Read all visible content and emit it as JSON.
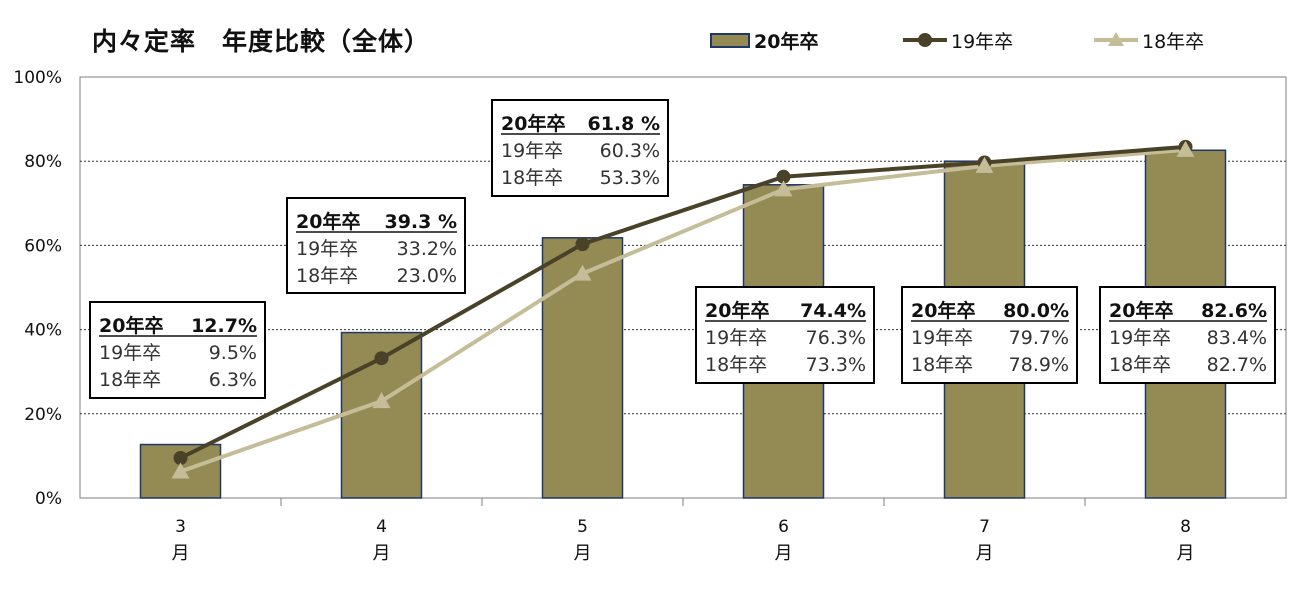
{
  "title": "内々定率　年度比較（全体）",
  "legend": [
    {
      "key": "s20",
      "label": "20年卒",
      "type": "bar"
    },
    {
      "key": "s19",
      "label": "19年卒",
      "type": "line-circle"
    },
    {
      "key": "s18",
      "label": "18年卒",
      "type": "line-triangle"
    }
  ],
  "colors": {
    "bar_fill": "#948A54",
    "bar_border": "#1F3864",
    "line19": "#4A4129",
    "line18": "#C4BD97",
    "grid": "#333333",
    "box_border": "#000000"
  },
  "chart_data": {
    "type": "bar",
    "categories": [
      {
        "num": "3",
        "unit": "月"
      },
      {
        "num": "4",
        "unit": "月"
      },
      {
        "num": "5",
        "unit": "月"
      },
      {
        "num": "6",
        "unit": "月"
      },
      {
        "num": "7",
        "unit": "月"
      },
      {
        "num": "8",
        "unit": "月"
      }
    ],
    "ylim": [
      0,
      100
    ],
    "yticks": [
      "0%",
      "20%",
      "40%",
      "60%",
      "80%",
      "100%"
    ],
    "grid": true,
    "series": [
      {
        "name": "20年卒",
        "type": "bar",
        "values": [
          12.7,
          39.3,
          61.8,
          74.4,
          80.0,
          82.6
        ]
      },
      {
        "name": "19年卒",
        "type": "line",
        "marker": "circle",
        "values": [
          9.5,
          33.2,
          60.3,
          76.3,
          79.7,
          83.4
        ]
      },
      {
        "name": "18年卒",
        "type": "line",
        "marker": "triangle",
        "values": [
          6.3,
          23.0,
          53.3,
          73.3,
          78.9,
          82.7
        ]
      }
    ],
    "annotations": [
      {
        "rows": [
          [
            "20年卒",
            "12.7%"
          ],
          [
            "19年卒",
            "9.5%"
          ],
          [
            "18年卒",
            "6.3%"
          ]
        ]
      },
      {
        "rows": [
          [
            "20年卒",
            "39.3 %"
          ],
          [
            "19年卒",
            "33.2%"
          ],
          [
            "18年卒",
            "23.0%"
          ]
        ]
      },
      {
        "rows": [
          [
            "20年卒",
            "61.8 %"
          ],
          [
            "19年卒",
            "60.3%"
          ],
          [
            "18年卒",
            "53.3%"
          ]
        ]
      },
      {
        "rows": [
          [
            "20年卒",
            "74.4%"
          ],
          [
            "19年卒",
            "76.3%"
          ],
          [
            "18年卒",
            "73.3%"
          ]
        ]
      },
      {
        "rows": [
          [
            "20年卒",
            "80.0%"
          ],
          [
            "19年卒",
            "79.7%"
          ],
          [
            "18年卒",
            "78.9%"
          ]
        ]
      },
      {
        "rows": [
          [
            "20年卒",
            "82.6%"
          ],
          [
            "19年卒",
            "83.4%"
          ],
          [
            "18年卒",
            "82.7%"
          ]
        ]
      }
    ]
  }
}
